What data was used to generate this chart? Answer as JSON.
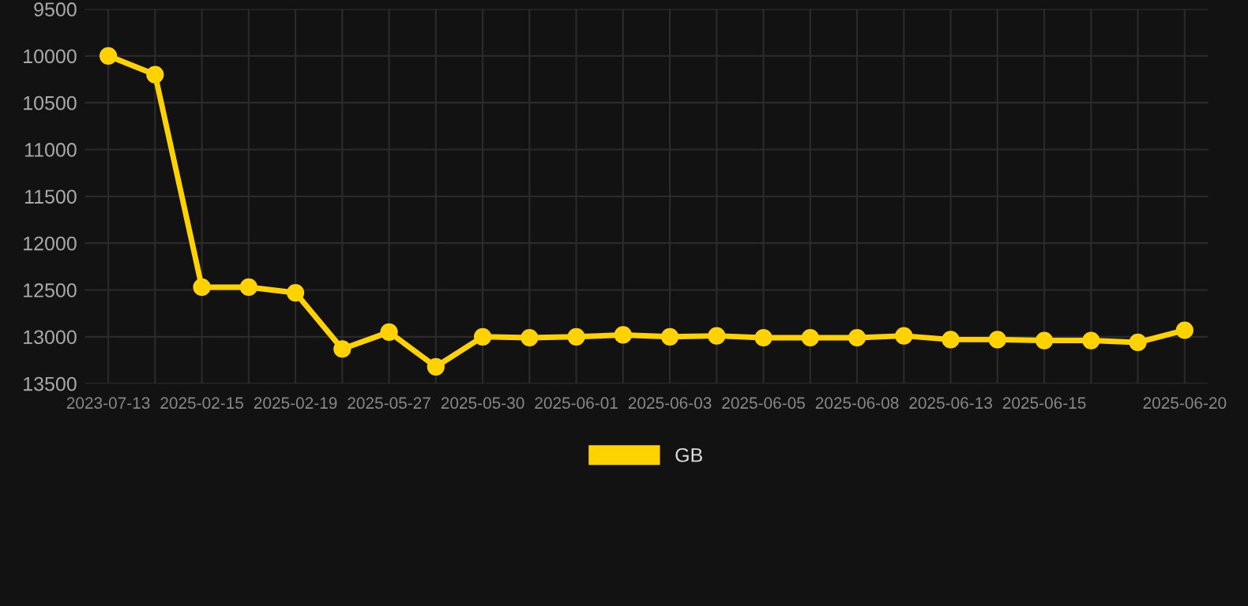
{
  "chart_data": {
    "type": "line",
    "categories": [
      "2023-07-13",
      null,
      "2025-02-15",
      null,
      "2025-02-19",
      null,
      "2025-05-27",
      null,
      "2025-05-30",
      null,
      "2025-06-01",
      null,
      "2025-06-03",
      null,
      "2025-06-05",
      null,
      "2025-06-08",
      null,
      "2025-06-13",
      null,
      "2025-06-15",
      null,
      null,
      "2025-06-20"
    ],
    "series": [
      {
        "name": "GB",
        "color": "#ffd200",
        "values": [
          10000,
          10200,
          12470,
          12470,
          12530,
          13130,
          12950,
          13320,
          13000,
          13010,
          13000,
          12980,
          13000,
          12990,
          13010,
          13010,
          13010,
          12990,
          13030,
          13030,
          13040,
          13040,
          13060,
          12930
        ]
      }
    ],
    "ylim": [
      13500,
      9500
    ],
    "yticks": [
      9500,
      10000,
      10500,
      11000,
      11500,
      12000,
      12500,
      13000,
      13500
    ],
    "grid": true,
    "legend": "bottom",
    "marker": "circle",
    "line_style": "solid"
  }
}
